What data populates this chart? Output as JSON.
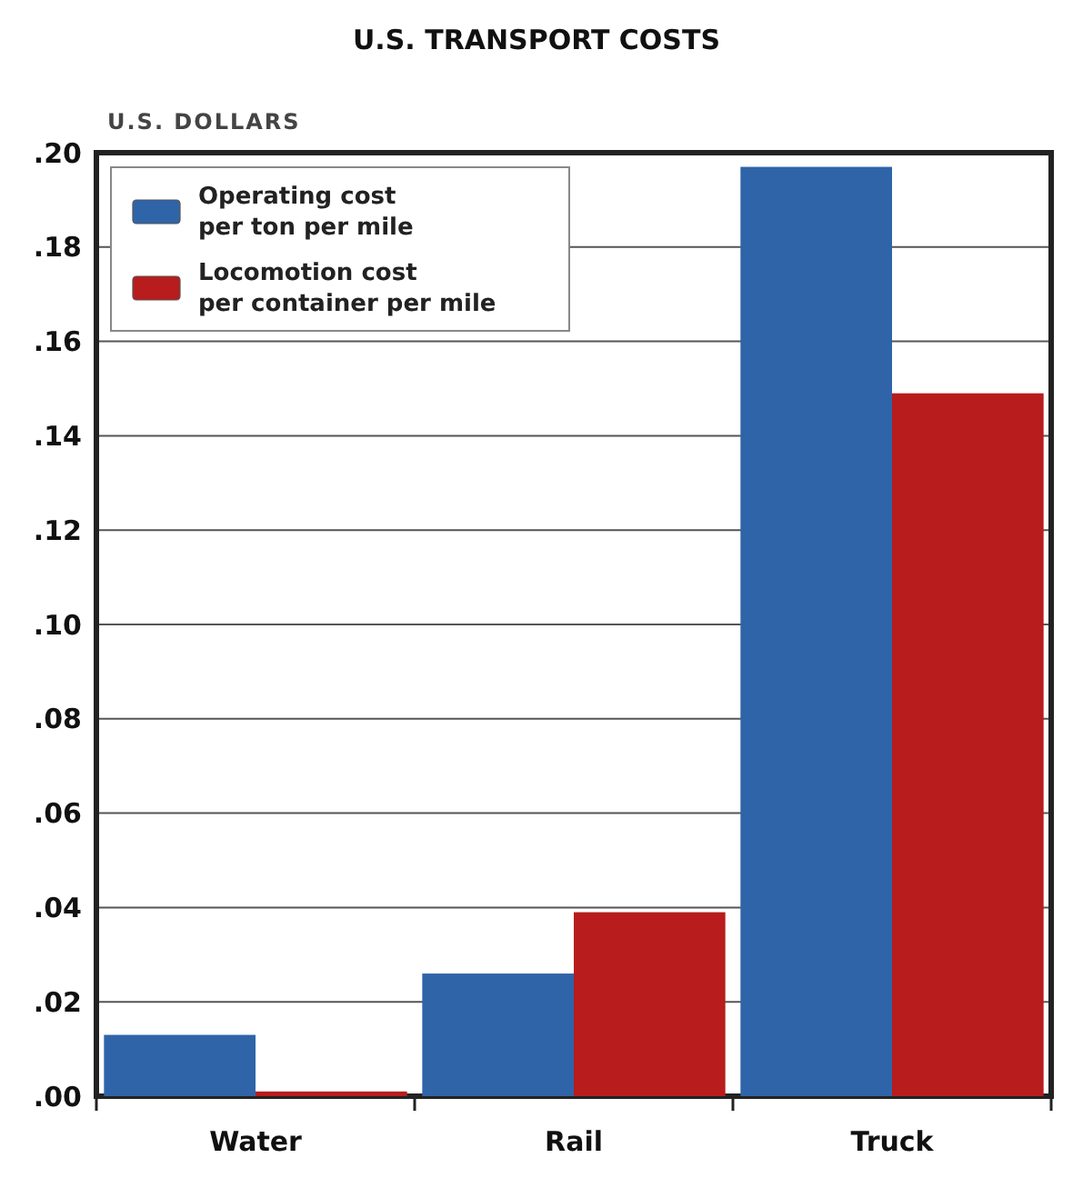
{
  "chart_data": {
    "type": "bar",
    "title": "U.S. TRANSPORT COSTS",
    "ylabel": "U.S. DOLLARS",
    "categories": [
      "Water",
      "Rail",
      "Truck"
    ],
    "series": [
      {
        "name": "Operating cost per ton per mile",
        "color": "#2f64a8",
        "values": [
          0.013,
          0.026,
          0.197
        ]
      },
      {
        "name": "Locomotion cost per container per mile",
        "color": "#b81c1c",
        "values": [
          0.001,
          0.039,
          0.149
        ]
      }
    ],
    "ylim": [
      0,
      0.2
    ],
    "yticks": [
      {
        "value": 0,
        "label": ".00"
      },
      {
        "value": 0.02,
        "label": ".02"
      },
      {
        "value": 0.04,
        "label": ".04"
      },
      {
        "value": 0.06,
        "label": ".06"
      },
      {
        "value": 0.08,
        "label": ".08"
      },
      {
        "value": 0.1,
        "label": ".10"
      },
      {
        "value": 0.12,
        "label": ".12"
      },
      {
        "value": 0.14,
        "label": ".14"
      },
      {
        "value": 0.16,
        "label": ".16"
      },
      {
        "value": 0.18,
        "label": ".18"
      },
      {
        "value": 0.2,
        "label": ".20"
      }
    ],
    "grid": "y",
    "legend": "top left"
  }
}
